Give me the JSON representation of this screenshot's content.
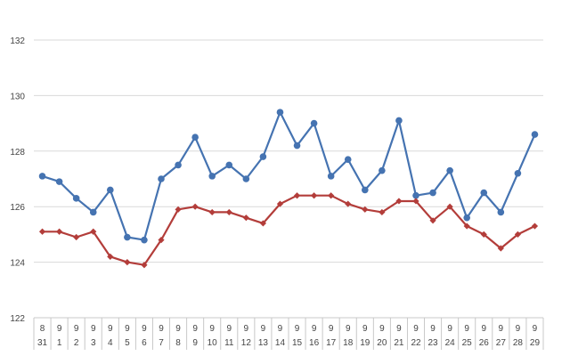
{
  "chart_data": {
    "type": "line",
    "title": "",
    "xlabel": "",
    "ylabel": "",
    "ylim": [
      122,
      132
    ],
    "yticks": [
      122,
      124,
      126,
      128,
      130,
      132
    ],
    "grid": true,
    "legend": "none",
    "categories": [
      {
        "month": "8",
        "day": "31"
      },
      {
        "month": "9",
        "day": "1"
      },
      {
        "month": "9",
        "day": "2"
      },
      {
        "month": "9",
        "day": "3"
      },
      {
        "month": "9",
        "day": "4"
      },
      {
        "month": "9",
        "day": "5"
      },
      {
        "month": "9",
        "day": "6"
      },
      {
        "month": "9",
        "day": "7"
      },
      {
        "month": "9",
        "day": "8"
      },
      {
        "month": "9",
        "day": "9"
      },
      {
        "month": "9",
        "day": "10"
      },
      {
        "month": "9",
        "day": "11"
      },
      {
        "month": "9",
        "day": "12"
      },
      {
        "month": "9",
        "day": "13"
      },
      {
        "month": "9",
        "day": "14"
      },
      {
        "month": "9",
        "day": "15"
      },
      {
        "month": "9",
        "day": "16"
      },
      {
        "month": "9",
        "day": "17"
      },
      {
        "month": "9",
        "day": "18"
      },
      {
        "month": "9",
        "day": "19"
      },
      {
        "month": "9",
        "day": "20"
      },
      {
        "month": "9",
        "day": "21"
      },
      {
        "month": "9",
        "day": "22"
      },
      {
        "month": "9",
        "day": "23"
      },
      {
        "month": "9",
        "day": "24"
      },
      {
        "month": "9",
        "day": "25"
      },
      {
        "month": "9",
        "day": "26"
      },
      {
        "month": "9",
        "day": "27"
      },
      {
        "month": "9",
        "day": "28"
      },
      {
        "month": "9",
        "day": "29"
      }
    ],
    "series": [
      {
        "color": "#4573b1",
        "marker": "circle",
        "values": [
          127.1,
          126.9,
          126.3,
          125.8,
          126.6,
          124.9,
          124.8,
          127.0,
          127.5,
          128.5,
          127.1,
          127.5,
          127.0,
          127.8,
          129.4,
          128.2,
          129.0,
          127.1,
          127.7,
          126.6,
          127.3,
          129.1,
          126.4,
          126.5,
          127.3,
          125.6,
          126.5,
          125.8,
          127.2,
          128.6
        ]
      },
      {
        "color": "#b33d3a",
        "marker": "diamond",
        "values": [
          125.1,
          125.1,
          124.9,
          125.1,
          124.2,
          124.0,
          123.9,
          124.8,
          125.9,
          126.0,
          125.8,
          125.8,
          125.6,
          125.4,
          126.1,
          126.4,
          126.4,
          126.4,
          126.1,
          125.9,
          125.8,
          126.2,
          126.2,
          125.5,
          126.0,
          125.3,
          125.0,
          124.5,
          125.0,
          125.3
        ]
      }
    ]
  }
}
